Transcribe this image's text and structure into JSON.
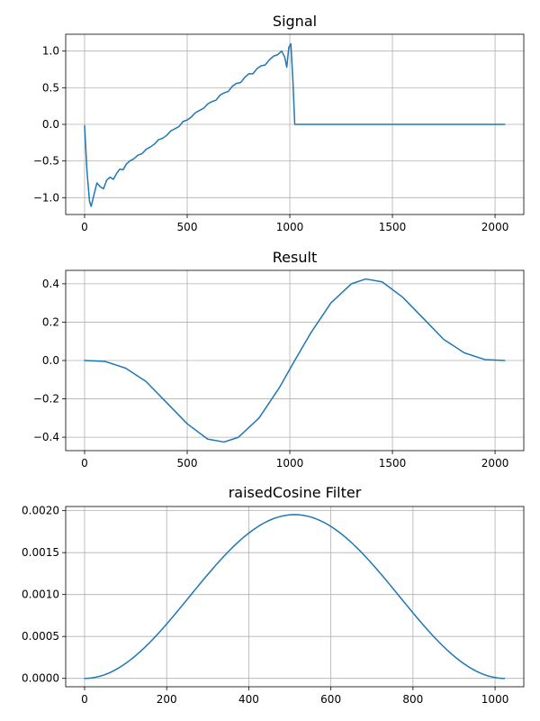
{
  "colors": {
    "line": "#1f77b4",
    "grid": "#b0b0b0",
    "frame": "#000000"
  },
  "chart_data": [
    {
      "type": "line",
      "title": "Signal",
      "xlabel": "",
      "ylabel": "",
      "xlim": [
        -92,
        2140
      ],
      "ylim": [
        -1.23,
        1.23
      ],
      "xticks": [
        0,
        500,
        1000,
        1500,
        2000
      ],
      "xtick_labels": [
        "0",
        "500",
        "1000",
        "1500",
        "2000"
      ],
      "yticks": [
        -1.0,
        -0.5,
        0.0,
        0.5,
        1.0
      ],
      "ytick_labels": [
        "−1.0",
        "−0.5",
        "0.0",
        "0.5",
        "1.0"
      ],
      "grid": true,
      "series": [
        {
          "x": [
            0,
            12,
            24,
            32,
            44,
            60,
            76,
            92,
            108,
            124,
            140,
            156,
            172,
            188,
            204,
            220,
            240,
            260,
            280,
            300,
            320,
            340,
            360,
            380,
            400,
            420,
            440,
            460,
            480,
            500,
            520,
            540,
            560,
            580,
            600,
            620,
            640,
            660,
            680,
            700,
            720,
            740,
            760,
            780,
            800,
            820,
            840,
            860,
            880,
            900,
            920,
            940,
            960,
            975,
            985,
            995,
            1005,
            1015,
            1024,
            1100,
            1300,
            1500,
            1700,
            1900,
            2047
          ],
          "values": [
            -0.02,
            -0.65,
            -1.05,
            -1.12,
            -0.98,
            -0.8,
            -0.85,
            -0.88,
            -0.76,
            -0.72,
            -0.75,
            -0.67,
            -0.61,
            -0.62,
            -0.54,
            -0.5,
            -0.47,
            -0.42,
            -0.4,
            -0.34,
            -0.31,
            -0.27,
            -0.21,
            -0.19,
            -0.15,
            -0.09,
            -0.06,
            -0.03,
            0.04,
            0.06,
            0.1,
            0.16,
            0.19,
            0.22,
            0.28,
            0.31,
            0.33,
            0.4,
            0.43,
            0.45,
            0.52,
            0.56,
            0.57,
            0.64,
            0.69,
            0.69,
            0.76,
            0.8,
            0.81,
            0.88,
            0.93,
            0.95,
            1.0,
            0.92,
            0.78,
            1.05,
            1.1,
            0.6,
            0.0,
            0.0,
            0.0,
            0.0,
            0.0,
            0.0,
            0.0
          ]
        }
      ]
    },
    {
      "type": "line",
      "title": "Result",
      "xlabel": "",
      "ylabel": "",
      "xlim": [
        -92,
        2140
      ],
      "ylim": [
        -0.47,
        0.47
      ],
      "xticks": [
        0,
        500,
        1000,
        1500,
        2000
      ],
      "xtick_labels": [
        "0",
        "500",
        "1000",
        "1500",
        "2000"
      ],
      "yticks": [
        -0.4,
        -0.2,
        0.0,
        0.2,
        0.4
      ],
      "ytick_labels": [
        "−0.4",
        "−0.2",
        "0.0",
        "0.2",
        "0.4"
      ],
      "grid": true,
      "series": [
        {
          "x": [
            0,
            100,
            200,
            300,
            400,
            500,
            600,
            680,
            750,
            850,
            950,
            1024,
            1100,
            1200,
            1300,
            1370,
            1450,
            1550,
            1650,
            1750,
            1850,
            1950,
            2047
          ],
          "values": [
            0.0,
            -0.005,
            -0.04,
            -0.11,
            -0.22,
            -0.33,
            -0.41,
            -0.425,
            -0.4,
            -0.3,
            -0.14,
            0.0,
            0.14,
            0.3,
            0.4,
            0.425,
            0.41,
            0.33,
            0.22,
            0.11,
            0.04,
            0.005,
            0.0
          ]
        }
      ]
    },
    {
      "type": "line",
      "title": "raisedCosine Filter",
      "xlabel": "",
      "ylabel": "",
      "xlim": [
        -46,
        1070
      ],
      "ylim": [
        -0.0001,
        0.00205
      ],
      "xticks": [
        0,
        200,
        400,
        600,
        800,
        1000
      ],
      "xtick_labels": [
        "0",
        "200",
        "400",
        "600",
        "800",
        "1000"
      ],
      "yticks": [
        0.0,
        0.0005,
        0.001,
        0.0015,
        0.002
      ],
      "ytick_labels": [
        "0.0000",
        "0.0005",
        "0.0010",
        "0.0015",
        "0.0020"
      ],
      "grid": true,
      "function": "raised_cosine",
      "peak": 0.001953,
      "domain": [
        0,
        1023
      ]
    }
  ]
}
